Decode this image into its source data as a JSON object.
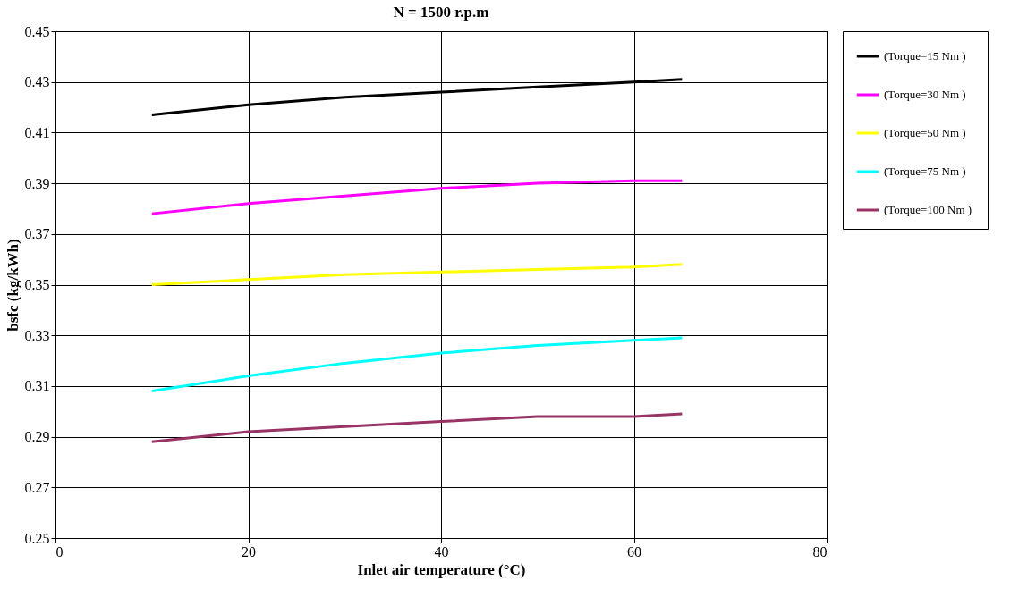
{
  "chart_data": {
    "type": "line",
    "title": "N = 1500  r.p.m",
    "xlabel": "Inlet air temperature (°C)",
    "ylabel": "bsfc (kg/kWh)",
    "x": [
      10,
      20,
      30,
      40,
      50,
      60,
      65
    ],
    "series": [
      {
        "name": "(Torque=15  Nm )",
        "color": "#000000",
        "values": [
          0.417,
          0.421,
          0.424,
          0.426,
          0.428,
          0.43,
          0.431
        ]
      },
      {
        "name": "(Torque=30  Nm )",
        "color": "#ff00ff",
        "values": [
          0.378,
          0.382,
          0.385,
          0.388,
          0.39,
          0.391,
          0.391
        ]
      },
      {
        "name": "(Torque=50  Nm )",
        "color": "#ffff00",
        "values": [
          0.35,
          0.352,
          0.354,
          0.355,
          0.356,
          0.357,
          0.358
        ]
      },
      {
        "name": "(Torque=75  Nm )",
        "color": "#00ffff",
        "values": [
          0.308,
          0.314,
          0.319,
          0.323,
          0.326,
          0.328,
          0.329
        ]
      },
      {
        "name": "(Torque=100  Nm )",
        "color": "#993366",
        "values": [
          0.288,
          0.292,
          0.294,
          0.296,
          0.298,
          0.298,
          0.299
        ]
      }
    ],
    "xlim": [
      0,
      80
    ],
    "xticks": [
      0,
      20,
      40,
      60,
      80
    ],
    "ylim": [
      0.25,
      0.45
    ],
    "yticks": [
      0.25,
      0.27,
      0.29,
      0.31,
      0.33,
      0.35,
      0.37,
      0.39,
      0.41,
      0.43,
      0.45
    ],
    "grid": true,
    "legend": "right",
    "marker": "none",
    "line_style": "solid"
  }
}
